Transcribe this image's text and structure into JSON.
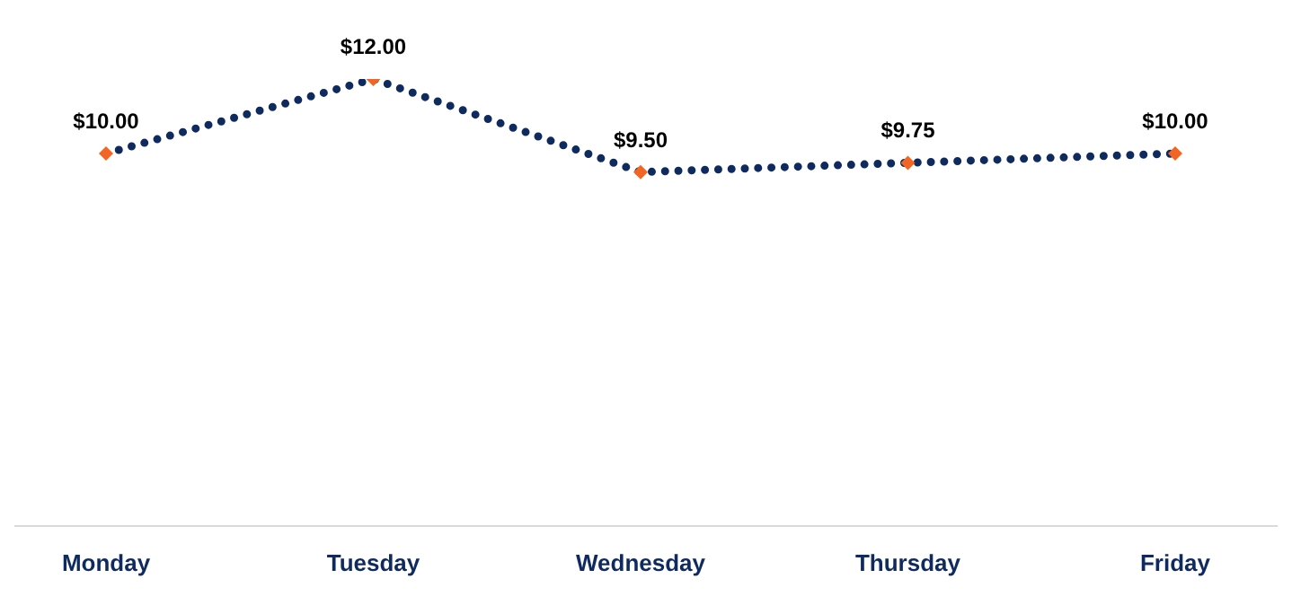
{
  "chart_data": {
    "type": "line",
    "categories": [
      "Monday",
      "Tuesday",
      "Wednesday",
      "Thursday",
      "Friday"
    ],
    "series": [
      {
        "color": "#0e2a5e",
        "colors": [
          "#f26522",
          "#f26522",
          "#f26522",
          "#f26522",
          "#f26522"
        ],
        "values": [
          10,
          12,
          9.5,
          9.75,
          10
        ],
        "value_labels": [
          "$10.00",
          "$12.00",
          "$9.50",
          "$9.75",
          "$10.00"
        ]
      }
    ],
    "tick_labels": "x",
    "marker": "diamond",
    "line_style": "dotted"
  }
}
